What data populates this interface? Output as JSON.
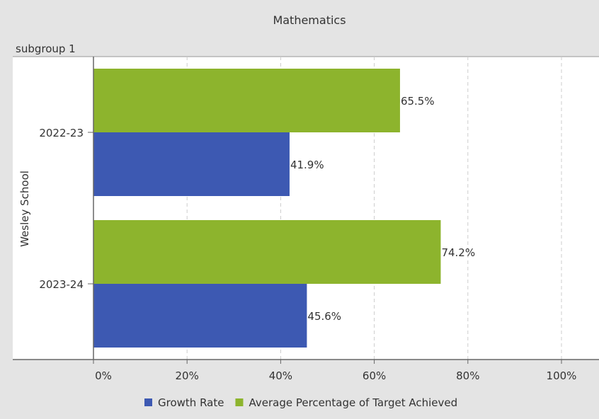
{
  "header": {
    "title": "Mathematics",
    "subgroup_label": "subgroup 1",
    "y_group_label": "Wesley School"
  },
  "chart_data": {
    "type": "bar",
    "orientation": "horizontal",
    "title": "Mathematics",
    "panel_label": "subgroup 1",
    "group_label": "Wesley School",
    "categories": [
      "2022-23",
      "2023-24"
    ],
    "series": [
      {
        "name": "Average Percentage of Target Achieved",
        "values": [
          65.5,
          74.2
        ],
        "labels": [
          "65.5%",
          "74.2%"
        ],
        "color": "#8db42d"
      },
      {
        "name": "Growth Rate",
        "values": [
          41.9,
          45.6
        ],
        "labels": [
          "41.9%",
          "45.6%"
        ],
        "color": "#3d59b2"
      }
    ],
    "legend_order": [
      "Growth Rate",
      "Average Percentage of Target Achieved"
    ],
    "legend_position": "bottom",
    "xlim": [
      0,
      100
    ],
    "xticks": [
      0,
      20,
      40,
      60,
      80,
      100
    ],
    "xtick_labels": [
      "0%",
      "20%",
      "40%",
      "60%",
      "80%",
      "100%"
    ],
    "grid": "vertical dashed"
  }
}
